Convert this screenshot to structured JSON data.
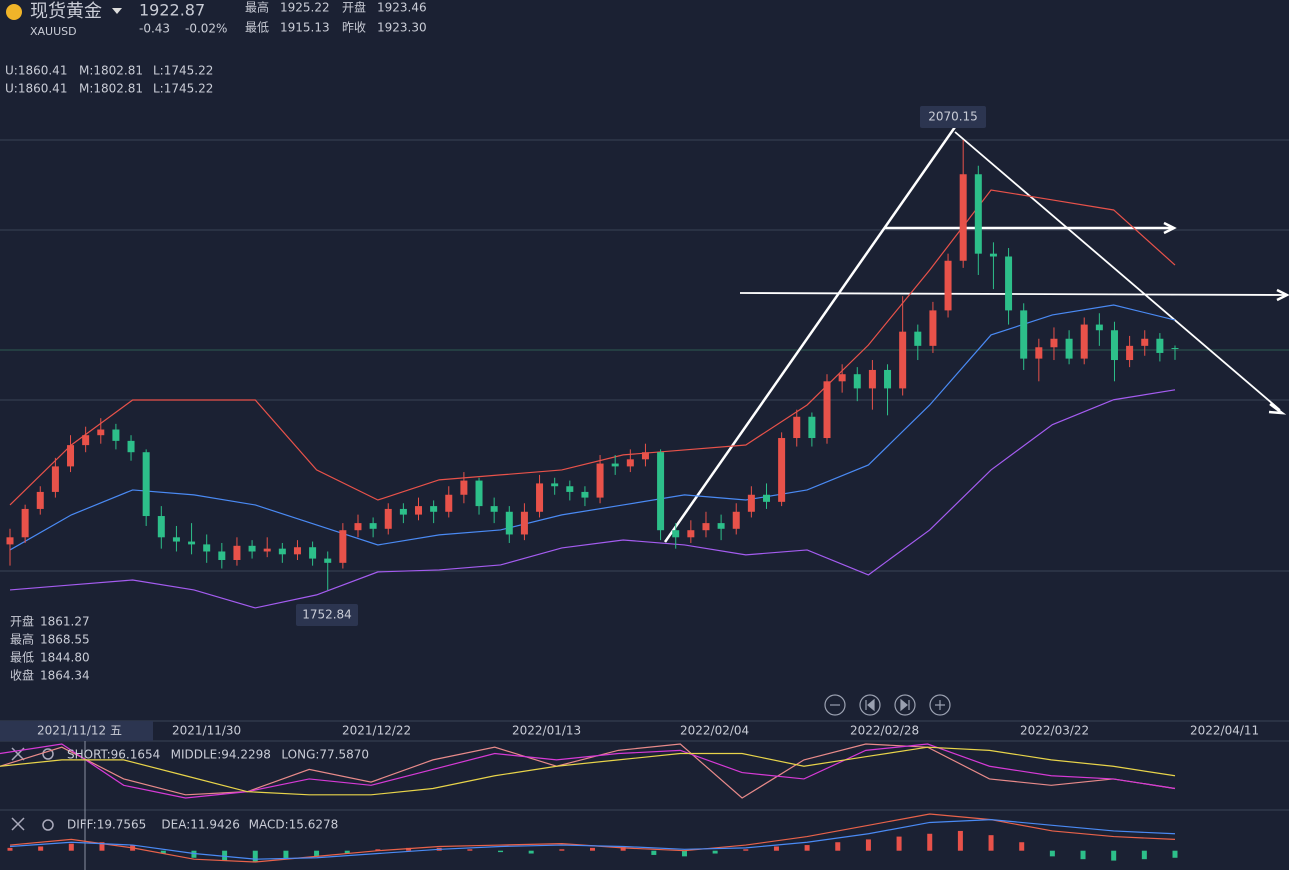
{
  "header": {
    "name": "现货黄金",
    "symbol": "XAUUSD",
    "price": "1922.87",
    "change": "-0.43",
    "change_pct": "-0.02%",
    "stats": [
      {
        "label": "最高",
        "value": "1925.22",
        "color": "#e8524a"
      },
      {
        "label": "开盘",
        "value": "1923.46",
        "color": "#e8524a"
      },
      {
        "label": "最低",
        "value": "1915.13",
        "color": "#2dbf8a"
      },
      {
        "label": "昨收",
        "value": "1923.30",
        "color": "#ffffff"
      }
    ]
  },
  "boll_legend": [
    [
      {
        "text": "U:1860.41",
        "color": "#e8524a"
      },
      {
        "text": "M:1802.81",
        "color": "#4a8af4"
      },
      {
        "text": "L:1745.22",
        "color": "#a45cf0"
      }
    ],
    [
      {
        "text": "U:1860.41",
        "color": "#e8524a"
      },
      {
        "text": "M:1802.81",
        "color": "#4a8af4"
      },
      {
        "text": "L:1745.22",
        "color": "#a45cf0"
      }
    ]
  ],
  "ohlc_panel": [
    {
      "label": "开盘",
      "value": "1861.27"
    },
    {
      "label": "最高",
      "value": "1868.55"
    },
    {
      "label": "最低",
      "value": "1844.80"
    },
    {
      "label": "收盘",
      "value": "1864.34"
    }
  ],
  "x_labels": [
    "2021/11/12 五",
    "2021/11/30",
    "2021/12/22",
    "2022/01/13",
    "2022/02/04",
    "2022/02/28",
    "2022/03/22",
    "2022/04/11"
  ],
  "chart_data": [
    {
      "type": "candlestick",
      "up_color": "#e8524a",
      "down_color": "#2dbf8a",
      "open": [
        1785,
        1790,
        1810,
        1822,
        1840,
        1855,
        1862,
        1866,
        1858,
        1850,
        1805,
        1790,
        1787,
        1785,
        1780,
        1774,
        1784,
        1780,
        1782,
        1778,
        1783,
        1775,
        1772,
        1795,
        1800,
        1796,
        1810,
        1806,
        1812,
        1808,
        1820,
        1830,
        1812,
        1808,
        1792,
        1808,
        1828,
        1826,
        1822,
        1818,
        1842,
        1840,
        1845,
        1850,
        1795,
        1790,
        1795,
        1800,
        1796,
        1808,
        1820,
        1815,
        1860,
        1875,
        1860,
        1900,
        1905,
        1895,
        1908,
        1895,
        1935,
        1925,
        1950,
        1985,
        2046,
        1990,
        1988,
        1950,
        1916,
        1924,
        1930,
        1916,
        1940,
        1936,
        1915,
        1925,
        1930,
        1923.46
      ],
      "high": [
        1796,
        1813,
        1826,
        1846,
        1862,
        1868,
        1874,
        1870,
        1862,
        1852,
        1812,
        1798,
        1800,
        1792,
        1786,
        1790,
        1788,
        1790,
        1786,
        1788,
        1787,
        1780,
        1800,
        1806,
        1804,
        1814,
        1814,
        1818,
        1816,
        1826,
        1836,
        1832,
        1818,
        1812,
        1814,
        1834,
        1832,
        1830,
        1826,
        1848,
        1848,
        1852,
        1856,
        1852,
        1800,
        1802,
        1808,
        1806,
        1814,
        1826,
        1828,
        1864,
        1880,
        1878,
        1905,
        1912,
        1910,
        1915,
        1912,
        1960,
        1940,
        1956,
        1990,
        2070.15,
        2052,
        1998,
        1994,
        1955,
        1930,
        1938,
        1936,
        1945,
        1948,
        1942,
        1932,
        1936,
        1934,
        1925.22
      ],
      "low": [
        1770,
        1786,
        1806,
        1818,
        1836,
        1850,
        1856,
        1852,
        1844,
        1798,
        1782,
        1780,
        1778,
        1772,
        1768,
        1770,
        1775,
        1776,
        1772,
        1774,
        1770,
        1752.84,
        1768,
        1790,
        1790,
        1792,
        1800,
        1802,
        1800,
        1804,
        1814,
        1806,
        1800,
        1786,
        1788,
        1804,
        1820,
        1816,
        1812,
        1814,
        1834,
        1836,
        1840,
        1788,
        1782,
        1786,
        1790,
        1788,
        1792,
        1804,
        1810,
        1812,
        1854,
        1854,
        1856,
        1892,
        1886,
        1880,
        1876,
        1890,
        1915,
        1920,
        1945,
        1980,
        1975,
        1965,
        1940,
        1908,
        1900,
        1915,
        1912,
        1912,
        1925,
        1900,
        1910,
        1918,
        1914,
        1915.13
      ],
      "close": [
        1790,
        1810,
        1822,
        1840,
        1855,
        1862,
        1866,
        1858,
        1850,
        1805,
        1790,
        1787,
        1785,
        1780,
        1774,
        1784,
        1780,
        1782,
        1778,
        1783,
        1775,
        1772,
        1795,
        1800,
        1796,
        1810,
        1806,
        1812,
        1808,
        1820,
        1830,
        1812,
        1808,
        1792,
        1808,
        1828,
        1826,
        1822,
        1818,
        1842,
        1840,
        1845,
        1850,
        1795,
        1790,
        1795,
        1800,
        1796,
        1808,
        1820,
        1815,
        1860,
        1875,
        1860,
        1900,
        1905,
        1895,
        1908,
        1895,
        1935,
        1925,
        1950,
        1985,
        2046,
        1990,
        1988,
        1950,
        1916,
        1924,
        1930,
        1916,
        1940,
        1936,
        1915,
        1925,
        1930,
        1920,
        1922.87
      ],
      "bands": [
        {
          "color": "#e8524a",
          "values": [
            1812.8,
            1855.1,
            1886.8,
            1886.8,
            1886.8,
            1837.5,
            1816.3,
            1830.5,
            1834,
            1837.5,
            1848.1,
            1851.6,
            1855.1,
            1883.3,
            1925.6,
            1978.5,
            2034.9,
            2027.9,
            2020.8,
            1982
          ]
        },
        {
          "color": "#4a8af4",
          "values": [
            1781.1,
            1805.8,
            1823.4,
            1819.9,
            1812.8,
            1798.7,
            1784.6,
            1791.7,
            1795.2,
            1805.8,
            1812.8,
            1819.9,
            1816.3,
            1823.4,
            1841,
            1883.3,
            1932.7,
            1946.8,
            1953.8,
            1943.2
          ]
        },
        {
          "color": "#a45cf0",
          "values": [
            1752.9,
            1756.4,
            1759.9,
            1752.9,
            1740.2,
            1749.4,
            1765.6,
            1767,
            1770.5,
            1782.5,
            1788.1,
            1784.6,
            1777.6,
            1781.1,
            1763.5,
            1795.2,
            1837.5,
            1869.4,
            1887,
            1894
          ]
        }
      ]
    },
    {
      "type": "line",
      "series": [
        {
          "name": "SHORT:96.1654",
          "color": "#e88a8a",
          "values": [
            60,
            90,
            40,
            15,
            20,
            55,
            35,
            70,
            90,
            60,
            85,
            95,
            10,
            70,
            95,
            90,
            40,
            30,
            40,
            25
          ]
        },
        {
          "name": "MIDDLE:94.2298",
          "color": "#d63ad6",
          "values": [
            80,
            95,
            30,
            10,
            20,
            40,
            30,
            55,
            80,
            70,
            80,
            85,
            50,
            40,
            85,
            95,
            60,
            45,
            40,
            25
          ]
        },
        {
          "name": "LONG:77.5870",
          "color": "#e8d44a",
          "values": [
            60,
            70,
            70,
            45,
            20,
            15,
            15,
            25,
            45,
            60,
            70,
            80,
            80,
            60,
            75,
            90,
            85,
            70,
            60,
            45
          ]
        }
      ]
    },
    {
      "type": "macd",
      "up_color": "#e8524a",
      "down_color": "#2dbf8a",
      "values": [
        2,
        3,
        5,
        6,
        4,
        -2,
        -5,
        -7,
        -8,
        -6,
        -4,
        -2,
        1,
        2,
        2,
        1,
        -1,
        -2,
        1,
        2,
        3,
        -3,
        -4,
        -2,
        1,
        3,
        4,
        6,
        8,
        10,
        12,
        14,
        11,
        6,
        -4,
        -6,
        -7,
        -6,
        -5
      ],
      "series": [
        {
          "name": "DIFF:19.7565",
          "color": "#e8624a",
          "values": [
            4,
            8,
            2,
            -6,
            -8,
            -4,
            0,
            3,
            4,
            5,
            2,
            0,
            4,
            10,
            18,
            26,
            22,
            14,
            10,
            8
          ]
        },
        {
          "name": "DEA:11.9426",
          "color": "#4a8af4",
          "values": [
            3,
            6,
            4,
            -2,
            -6,
            -5,
            -2,
            1,
            3,
            4,
            3,
            1,
            2,
            6,
            12,
            20,
            22,
            18,
            14,
            12
          ]
        },
        {
          "name": "MACD:15.6278",
          "color": "#e8524a"
        }
      ]
    }
  ]
}
